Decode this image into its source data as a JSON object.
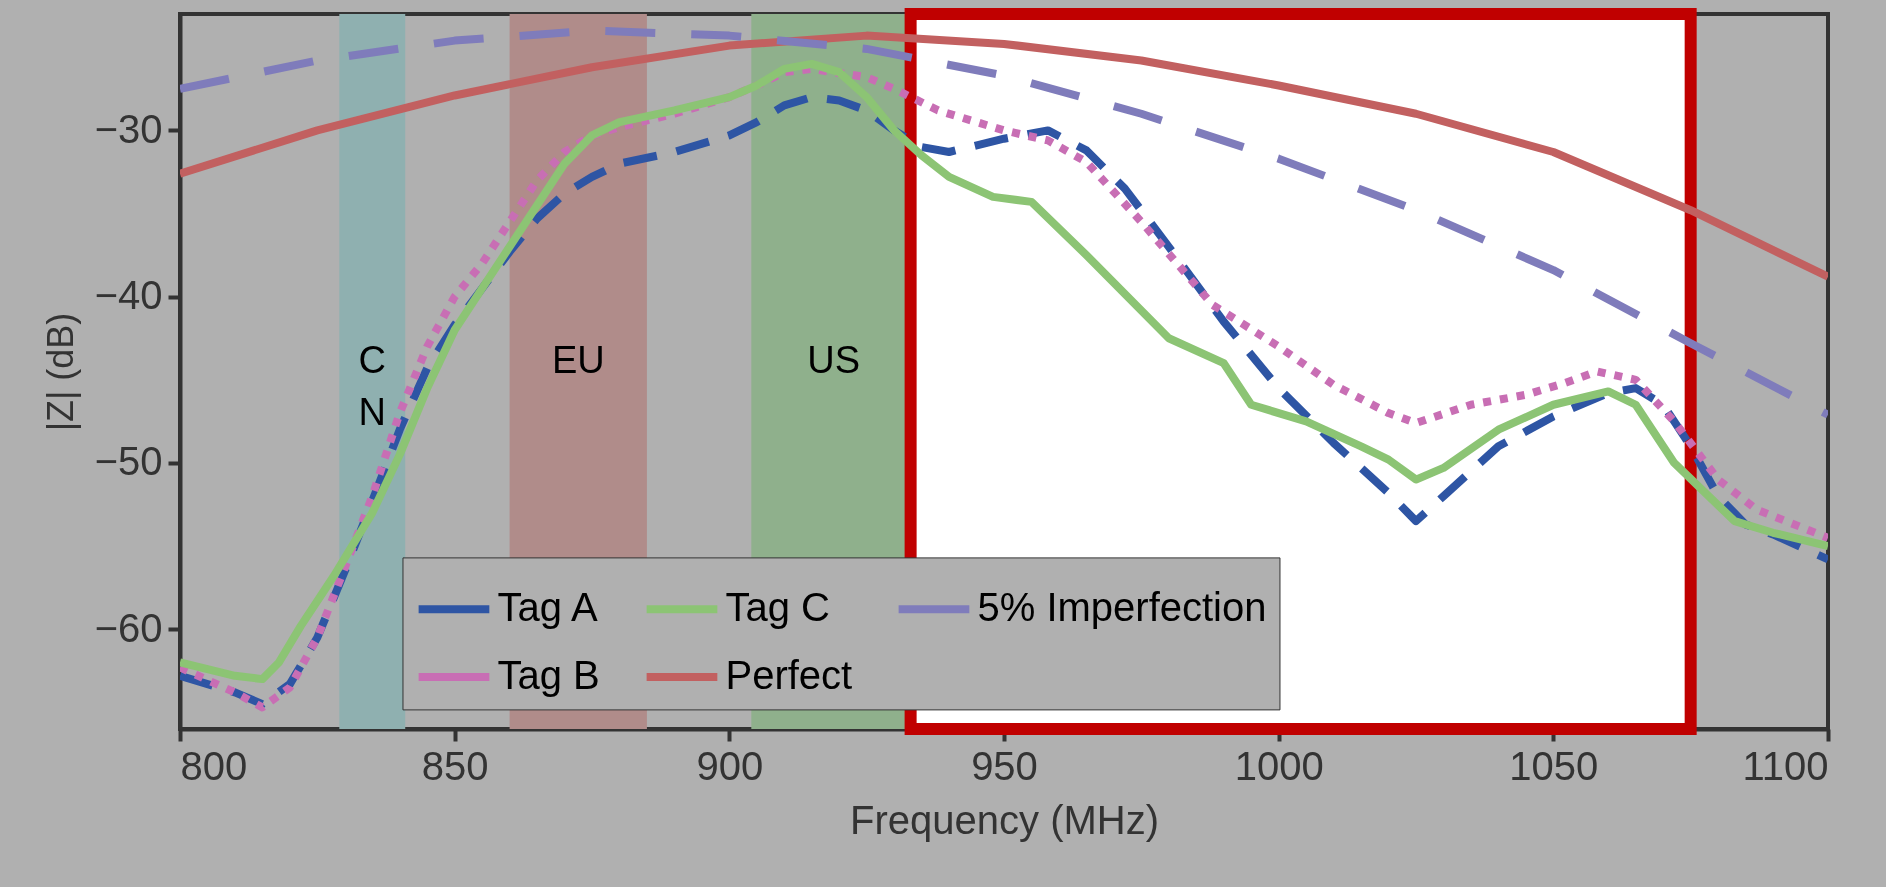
{
  "chart_data": {
    "type": "line",
    "xlabel": "Frequency (MHz)",
    "ylabel": "|Z| (dB)",
    "xlim": [
      800,
      1100
    ],
    "xticks": [
      800,
      850,
      900,
      950,
      1000,
      1050,
      1100
    ],
    "ylim": [
      -66,
      -23
    ],
    "yticks": [
      -60,
      -50,
      -40,
      -30
    ],
    "grid": false,
    "legend": "bottom",
    "bands": [
      {
        "axis": "x",
        "from": 829,
        "to": 841,
        "label": "CN",
        "color": "#8fb0b0"
      },
      {
        "axis": "x",
        "from": 860,
        "to": 885,
        "label": "EU",
        "color": "#b08c8a"
      },
      {
        "axis": "x",
        "from": 904,
        "to": 934,
        "label": "US",
        "color": "#8fb08c"
      },
      {
        "axis": "x",
        "from": 933,
        "to": 1075,
        "color": "#ffffff"
      }
    ],
    "series": [
      {
        "name": "Tag A",
        "color": "#2e55a4",
        "line_style": "dashed",
        "x": [
          800,
          810,
          815,
          820,
          825,
          830,
          835,
          840,
          845,
          850,
          855,
          860,
          865,
          870,
          875,
          880,
          890,
          900,
          905,
          910,
          915,
          920,
          925,
          930,
          935,
          940,
          950,
          958,
          965,
          972,
          980,
          990,
          1000,
          1010,
          1020,
          1025,
          1030,
          1040,
          1050,
          1060,
          1065,
          1070,
          1075,
          1080,
          1085,
          1090,
          1100
        ],
        "values": [
          -62.8,
          -63.8,
          -64.5,
          -63.3,
          -60.5,
          -56.5,
          -52.3,
          -48.0,
          -44.3,
          -41.7,
          -39.5,
          -37.3,
          -35.3,
          -33.8,
          -32.8,
          -32.0,
          -31.3,
          -30.3,
          -29.5,
          -28.5,
          -28.0,
          -28.2,
          -28.8,
          -30.0,
          -31.0,
          -31.3,
          -30.5,
          -30.0,
          -31.2,
          -33.5,
          -37.0,
          -41.5,
          -45.5,
          -48.8,
          -51.8,
          -53.5,
          -52.0,
          -49.0,
          -47.2,
          -45.8,
          -45.5,
          -46.5,
          -49.0,
          -52.0,
          -53.7,
          -54.3,
          -55.8
        ]
      },
      {
        "name": "Tag B",
        "color": "#c86eb4",
        "line_style": "dotted",
        "x": [
          800,
          810,
          815,
          820,
          825,
          830,
          835,
          840,
          845,
          850,
          855,
          860,
          865,
          870,
          875,
          880,
          890,
          900,
          905,
          910,
          915,
          925,
          930,
          938,
          950,
          958,
          965,
          975,
          988,
          1000,
          1010,
          1020,
          1025,
          1035,
          1045,
          1052,
          1058,
          1065,
          1072,
          1080,
          1087,
          1100
        ],
        "values": [
          -62.3,
          -63.8,
          -64.7,
          -63.5,
          -60.5,
          -56.3,
          -52.0,
          -47.0,
          -43.0,
          -40.0,
          -38.0,
          -35.5,
          -33.0,
          -31.3,
          -30.3,
          -29.8,
          -29.0,
          -28.0,
          -27.3,
          -26.5,
          -26.3,
          -26.8,
          -27.5,
          -28.8,
          -30.0,
          -30.6,
          -31.9,
          -35.5,
          -40.5,
          -43.0,
          -45.3,
          -47.0,
          -47.6,
          -46.5,
          -45.9,
          -45.2,
          -44.5,
          -45.0,
          -47.5,
          -51.0,
          -52.8,
          -54.5
        ]
      },
      {
        "name": "Tag C",
        "color": "#8cc474",
        "line_style": "solid",
        "x": [
          800,
          810,
          815,
          818,
          822,
          828,
          835,
          840,
          845,
          850,
          855,
          860,
          865,
          870,
          875,
          880,
          890,
          900,
          905,
          910,
          915,
          920,
          925,
          930,
          935,
          940,
          948,
          955,
          965,
          980,
          990,
          995,
          1005,
          1015,
          1020,
          1025,
          1030,
          1040,
          1050,
          1060,
          1065,
          1072,
          1083,
          1090,
          1100
        ],
        "values": [
          -62.0,
          -62.8,
          -63.0,
          -62.0,
          -59.8,
          -56.8,
          -53.0,
          -49.5,
          -45.5,
          -42.0,
          -39.5,
          -37.0,
          -34.5,
          -32.0,
          -30.3,
          -29.5,
          -28.8,
          -28.0,
          -27.3,
          -26.3,
          -26.0,
          -26.5,
          -28.0,
          -30.0,
          -31.5,
          -32.8,
          -34.0,
          -34.3,
          -37.5,
          -42.5,
          -44.0,
          -46.5,
          -47.5,
          -49.0,
          -49.8,
          -51.0,
          -50.3,
          -48.0,
          -46.5,
          -45.7,
          -46.5,
          -50.0,
          -53.5,
          -54.2,
          -55.0
        ]
      },
      {
        "name": "Perfect",
        "color": "#c26060",
        "line_style": "solid",
        "x": [
          800,
          825,
          850,
          875,
          900,
          925,
          950,
          975,
          1000,
          1025,
          1050,
          1075,
          1100
        ],
        "values": [
          -32.6,
          -30.0,
          -27.9,
          -26.2,
          -24.9,
          -24.3,
          -24.8,
          -25.8,
          -27.3,
          -29.0,
          -31.3,
          -34.8,
          -38.8
        ]
      },
      {
        "name": "5% Imperfection",
        "color": "#7f7cbb",
        "line_style": "dashed",
        "x": [
          800,
          825,
          850,
          875,
          900,
          925,
          950,
          975,
          1000,
          1025,
          1050,
          1075,
          1100
        ],
        "values": [
          -27.5,
          -25.8,
          -24.6,
          -24.0,
          -24.3,
          -25.1,
          -26.7,
          -29.0,
          -31.7,
          -34.8,
          -38.4,
          -42.8,
          -47.1
        ]
      }
    ]
  }
}
